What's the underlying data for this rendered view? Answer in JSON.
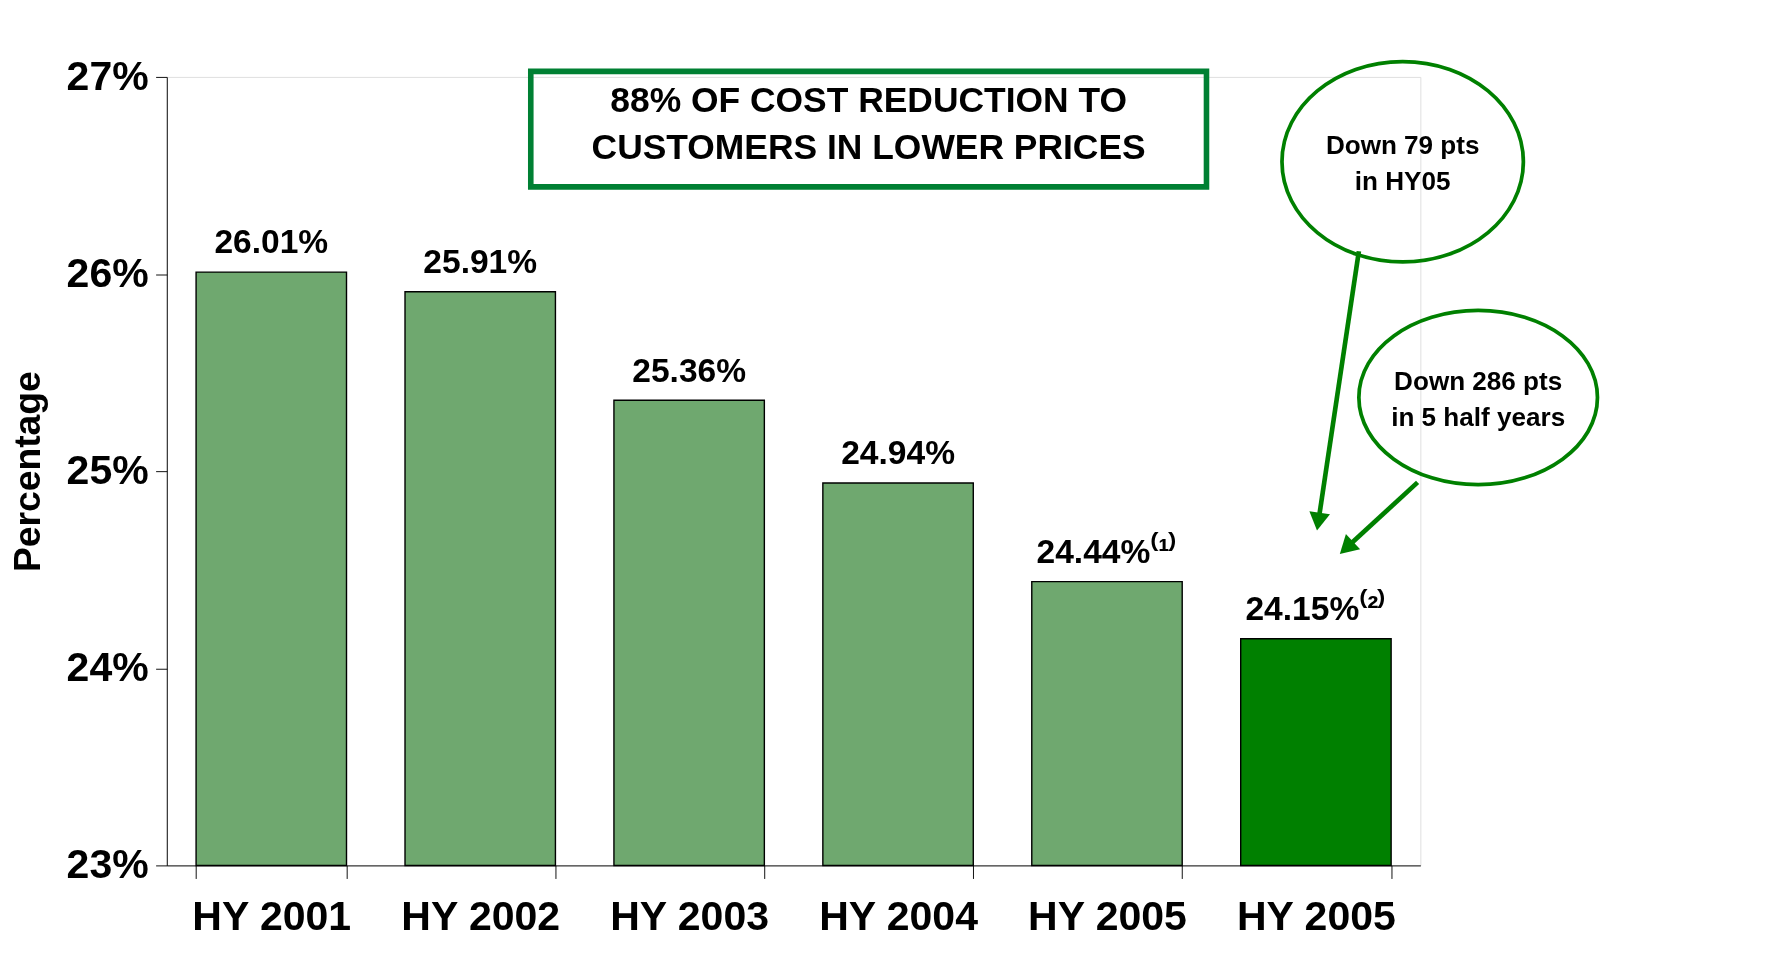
{
  "chart_data": {
    "type": "bar",
    "categories": [
      "HY 2001",
      "HY 2002",
      "HY 2003",
      "HY 2004",
      "HY 2005",
      "HY 2005"
    ],
    "values": [
      26.01,
      25.91,
      25.36,
      24.94,
      24.44,
      24.15
    ],
    "value_labels": [
      "26.01%",
      "25.91%",
      "25.36%",
      "24.94%",
      "24.44%⁽¹⁾",
      "24.15%⁽²⁾"
    ],
    "colors": [
      "#6fa86f",
      "#6fa86f",
      "#6fa86f",
      "#6fa86f",
      "#6fa86f",
      "#008000"
    ],
    "ylabel": "Percentage",
    "ylim": [
      23,
      27
    ],
    "yticks": [
      {
        "value": 23,
        "label": "23%"
      },
      {
        "value": 24,
        "label": "24%"
      },
      {
        "value": 25,
        "label": "25%"
      },
      {
        "value": 26,
        "label": "26%"
      },
      {
        "value": 27,
        "label": "27%"
      }
    ],
    "grid": false,
    "annotations": [
      "88% OF COST REDUCTION TO\nCUSTOMERS IN LOWER PRICES",
      "Down 79 pts\nin HY05",
      "Down 286 pts\nin 5 half years"
    ]
  }
}
